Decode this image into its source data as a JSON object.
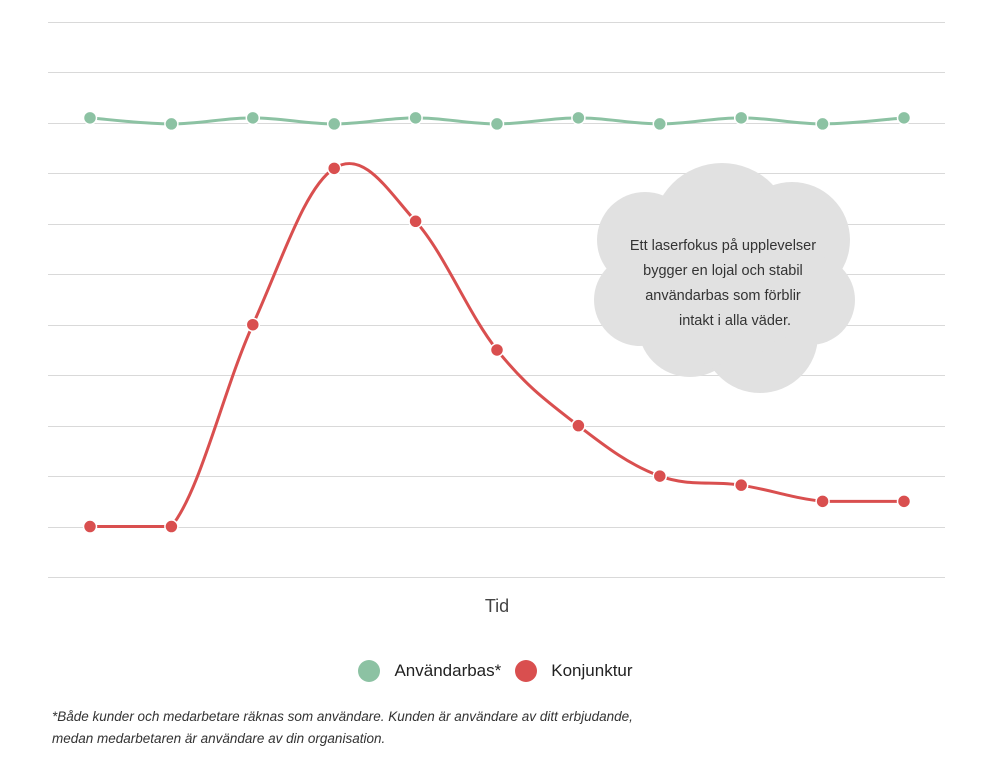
{
  "chart_data": {
    "type": "line",
    "title": "",
    "xlabel": "Tid",
    "ylabel": "",
    "x": [
      1,
      2,
      3,
      4,
      5,
      6,
      7,
      8,
      9,
      10,
      11
    ],
    "ylim": [
      0,
      11
    ],
    "grid": true,
    "legend_position": "bottom",
    "series": [
      {
        "name": "Användarbas*",
        "color": "#8cc2a3",
        "values": [
          9.1,
          8.98,
          9.1,
          8.98,
          9.1,
          8.98,
          9.1,
          8.98,
          9.1,
          8.98,
          9.1
        ]
      },
      {
        "name": "Konjunktur",
        "color": "#d94f4f",
        "values": [
          1.0,
          1.0,
          5.0,
          8.1,
          7.05,
          4.5,
          3.0,
          2.0,
          1.82,
          1.5,
          1.5
        ]
      }
    ],
    "annotation": {
      "lines": [
        "Ett laserfokus på upplevelser",
        "bygger en lojal och stabil",
        "användarbas som förblir",
        "intakt i alla väder."
      ]
    }
  },
  "footnote": {
    "line1": "*Både kunder och medarbetare räknas som användare. Kunden är användare av ditt erbjudande,",
    "line2": "medan medarbetaren är användare av din organisation."
  }
}
